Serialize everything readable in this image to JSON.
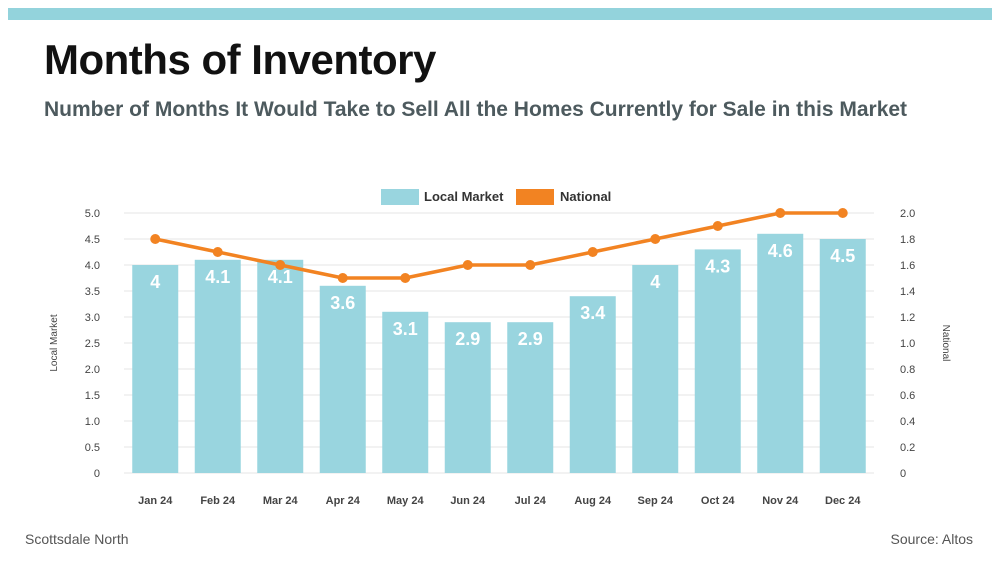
{
  "header": {
    "title": "Months of Inventory",
    "subtitle": "Number of Months It Would Take to Sell All the Homes Currently for Sale in this Market"
  },
  "footer": {
    "left": "Scottsdale North",
    "right": "Source: Altos"
  },
  "colors": {
    "bar": "#99d5df",
    "line": "#f28322",
    "grid": "#e4e4e4",
    "axis_text": "#444444",
    "bar_label": "#ffffff"
  },
  "chart_data": {
    "type": "bar",
    "categories": [
      "Jan 24",
      "Feb 24",
      "Mar 24",
      "Apr 24",
      "May 24",
      "Jun 24",
      "Jul 24",
      "Aug 24",
      "Sep 24",
      "Oct 24",
      "Nov 24",
      "Dec 24"
    ],
    "series": [
      {
        "name": "Local Market",
        "type": "bar",
        "axis": "left",
        "values": [
          4,
          4.1,
          4.1,
          3.6,
          3.1,
          2.9,
          2.9,
          3.4,
          4,
          4.3,
          4.6,
          4.5
        ],
        "labels": [
          "4",
          "4.1",
          "4.1",
          "3.6",
          "3.1",
          "2.9",
          "2.9",
          "3.4",
          "4",
          "4.3",
          "4.6",
          "4.5"
        ]
      },
      {
        "name": "National",
        "type": "line",
        "axis": "right",
        "values": [
          1.8,
          1.7,
          1.6,
          1.5,
          1.5,
          1.6,
          1.6,
          1.7,
          1.8,
          1.9,
          2.0,
          2.0
        ]
      }
    ],
    "ylabel": "Local Market",
    "y2label": "National",
    "ylim": [
      0,
      5
    ],
    "y2lim": [
      0,
      2
    ],
    "yticks": [
      "0",
      "0.5",
      "1.0",
      "1.5",
      "2.0",
      "2.5",
      "3.0",
      "3.5",
      "4.0",
      "4.5",
      "5.0"
    ],
    "y2ticks": [
      "0",
      "0.2",
      "0.4",
      "0.6",
      "0.8",
      "1.0",
      "1.2",
      "1.4",
      "1.6",
      "1.8",
      "2.0"
    ],
    "grid": true,
    "legend": "top-center"
  }
}
